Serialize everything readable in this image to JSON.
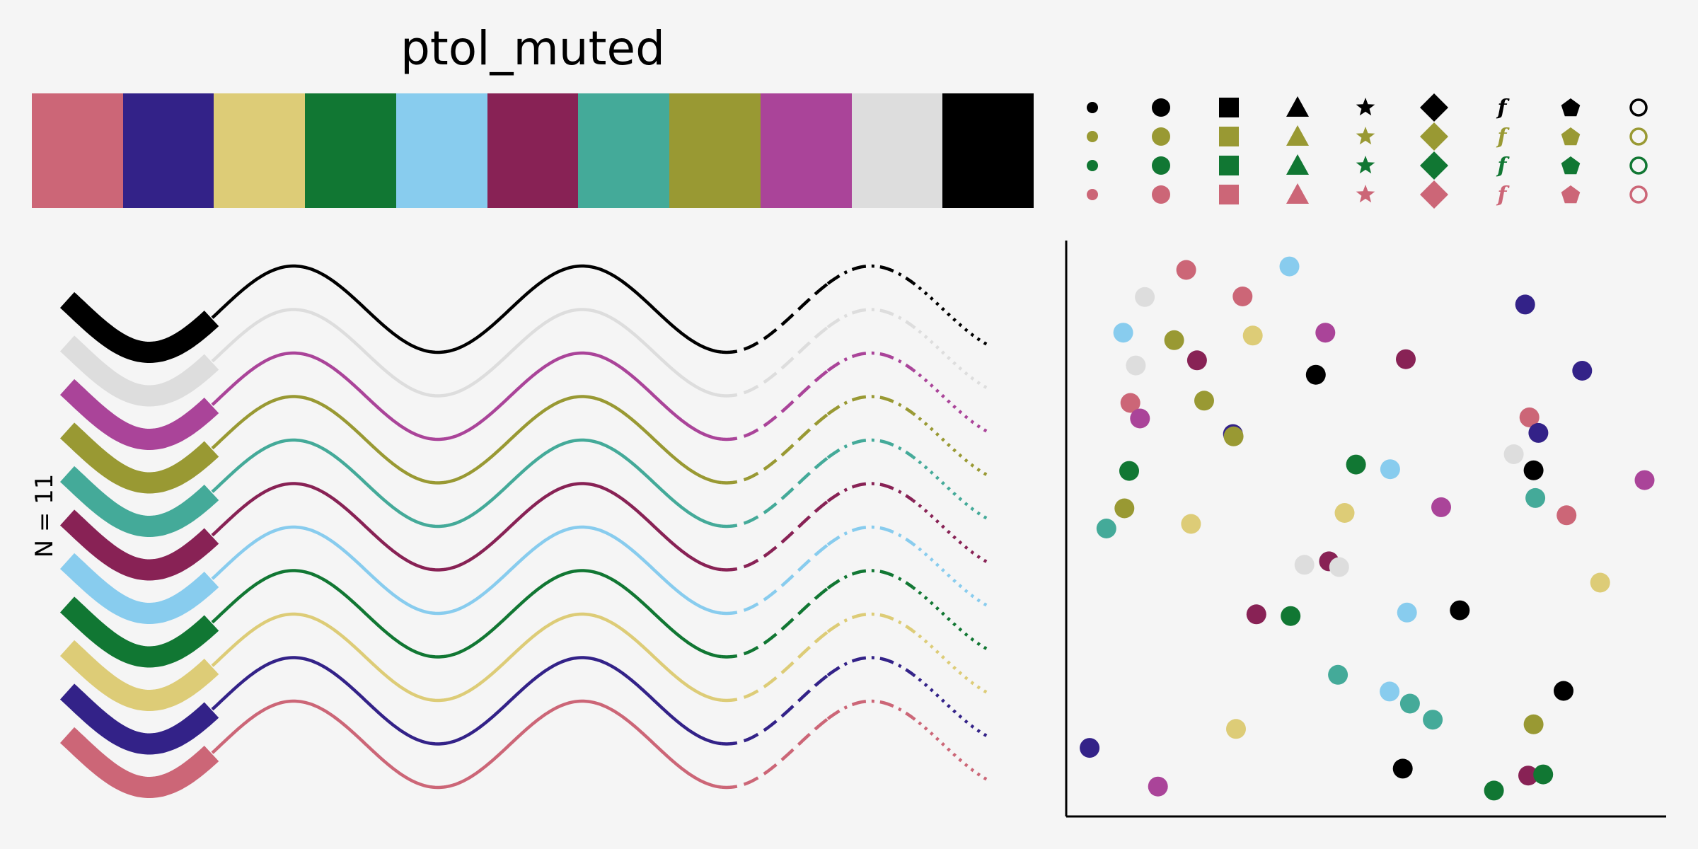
{
  "title": "ptol_muted",
  "palette": [
    "#CC6677",
    "#332288",
    "#DDCC77",
    "#117733",
    "#88CCEE",
    "#882255",
    "#44AA99",
    "#999933",
    "#AA4499",
    "#DDDDDD",
    "#000000"
  ],
  "marker_shapes": [
    "small-dot-icon",
    "circle-icon",
    "square-icon",
    "triangle-icon",
    "star-icon",
    "diamond-icon",
    "f-glyph-icon",
    "pentagon-icon",
    "open-circle-icon"
  ],
  "marker_glyph": "f",
  "marker_row_colors": [
    "#000000",
    "#999933",
    "#117733",
    "#CC6677"
  ],
  "chart_data": [
    {
      "type": "line",
      "title": "",
      "ylabel": "N = 11",
      "xlabel": "",
      "series_count": 11,
      "line_styles": [
        "thick",
        "solid",
        "dashed",
        "dashdot",
        "dotted"
      ],
      "grid": false
    },
    {
      "type": "scatter",
      "title": "",
      "xlabel": "",
      "ylabel": "",
      "grid": false,
      "xlim": [
        0,
        1
      ],
      "ylim": [
        0,
        1
      ],
      "points": [
        {
          "x": 0.2,
          "y": 0.949,
          "c": "#CC6677"
        },
        {
          "x": 0.372,
          "y": 0.955,
          "c": "#88CCEE"
        },
        {
          "x": 0.131,
          "y": 0.902,
          "c": "#DDDDDD"
        },
        {
          "x": 0.294,
          "y": 0.903,
          "c": "#CC6677"
        },
        {
          "x": 0.765,
          "y": 0.889,
          "c": "#332288"
        },
        {
          "x": 0.095,
          "y": 0.84,
          "c": "#88CCEE"
        },
        {
          "x": 0.18,
          "y": 0.827,
          "c": "#999933"
        },
        {
          "x": 0.311,
          "y": 0.835,
          "c": "#DDCC77"
        },
        {
          "x": 0.432,
          "y": 0.84,
          "c": "#AA4499"
        },
        {
          "x": 0.218,
          "y": 0.792,
          "c": "#882255"
        },
        {
          "x": 0.116,
          "y": 0.783,
          "c": "#DDDDDD"
        },
        {
          "x": 0.566,
          "y": 0.794,
          "c": "#882255"
        },
        {
          "x": 0.416,
          "y": 0.767,
          "c": "#000000"
        },
        {
          "x": 0.86,
          "y": 0.774,
          "c": "#332288"
        },
        {
          "x": 0.107,
          "y": 0.718,
          "c": "#CC6677"
        },
        {
          "x": 0.23,
          "y": 0.722,
          "c": "#999933"
        },
        {
          "x": 0.123,
          "y": 0.691,
          "c": "#AA4499"
        },
        {
          "x": 0.772,
          "y": 0.693,
          "c": "#CC6677"
        },
        {
          "x": 0.278,
          "y": 0.664,
          "c": "#332288"
        },
        {
          "x": 0.279,
          "y": 0.66,
          "c": "#999933"
        },
        {
          "x": 0.787,
          "y": 0.666,
          "c": "#332288"
        },
        {
          "x": 0.105,
          "y": 0.6,
          "c": "#117733"
        },
        {
          "x": 0.483,
          "y": 0.611,
          "c": "#117733"
        },
        {
          "x": 0.54,
          "y": 0.603,
          "c": "#88CCEE"
        },
        {
          "x": 0.746,
          "y": 0.629,
          "c": "#DDDDDD"
        },
        {
          "x": 0.779,
          "y": 0.601,
          "c": "#000000"
        },
        {
          "x": 0.964,
          "y": 0.584,
          "c": "#AA4499"
        },
        {
          "x": 0.097,
          "y": 0.535,
          "c": "#999933"
        },
        {
          "x": 0.625,
          "y": 0.537,
          "c": "#AA4499"
        },
        {
          "x": 0.782,
          "y": 0.553,
          "c": "#44AA99"
        },
        {
          "x": 0.464,
          "y": 0.527,
          "c": "#DDCC77"
        },
        {
          "x": 0.834,
          "y": 0.523,
          "c": "#CC6677"
        },
        {
          "x": 0.067,
          "y": 0.5,
          "c": "#44AA99"
        },
        {
          "x": 0.208,
          "y": 0.508,
          "c": "#DDCC77"
        },
        {
          "x": 0.438,
          "y": 0.443,
          "c": "#882255"
        },
        {
          "x": 0.397,
          "y": 0.437,
          "c": "#DDDDDD"
        },
        {
          "x": 0.455,
          "y": 0.433,
          "c": "#DDDDDD"
        },
        {
          "x": 0.89,
          "y": 0.406,
          "c": "#DDCC77"
        },
        {
          "x": 0.317,
          "y": 0.351,
          "c": "#882255"
        },
        {
          "x": 0.374,
          "y": 0.348,
          "c": "#117733"
        },
        {
          "x": 0.568,
          "y": 0.354,
          "c": "#88CCEE"
        },
        {
          "x": 0.656,
          "y": 0.358,
          "c": "#000000"
        },
        {
          "x": 0.453,
          "y": 0.246,
          "c": "#44AA99"
        },
        {
          "x": 0.539,
          "y": 0.217,
          "c": "#88CCEE"
        },
        {
          "x": 0.573,
          "y": 0.196,
          "c": "#44AA99"
        },
        {
          "x": 0.611,
          "y": 0.168,
          "c": "#44AA99"
        },
        {
          "x": 0.283,
          "y": 0.152,
          "c": "#DDCC77"
        },
        {
          "x": 0.779,
          "y": 0.16,
          "c": "#999933"
        },
        {
          "x": 0.829,
          "y": 0.218,
          "c": "#000000"
        },
        {
          "x": 0.039,
          "y": 0.119,
          "c": "#332288"
        },
        {
          "x": 0.561,
          "y": 0.083,
          "c": "#000000"
        },
        {
          "x": 0.153,
          "y": 0.052,
          "c": "#AA4499"
        },
        {
          "x": 0.713,
          "y": 0.045,
          "c": "#117733"
        },
        {
          "x": 0.77,
          "y": 0.071,
          "c": "#882255"
        },
        {
          "x": 0.795,
          "y": 0.073,
          "c": "#117733"
        }
      ]
    }
  ]
}
